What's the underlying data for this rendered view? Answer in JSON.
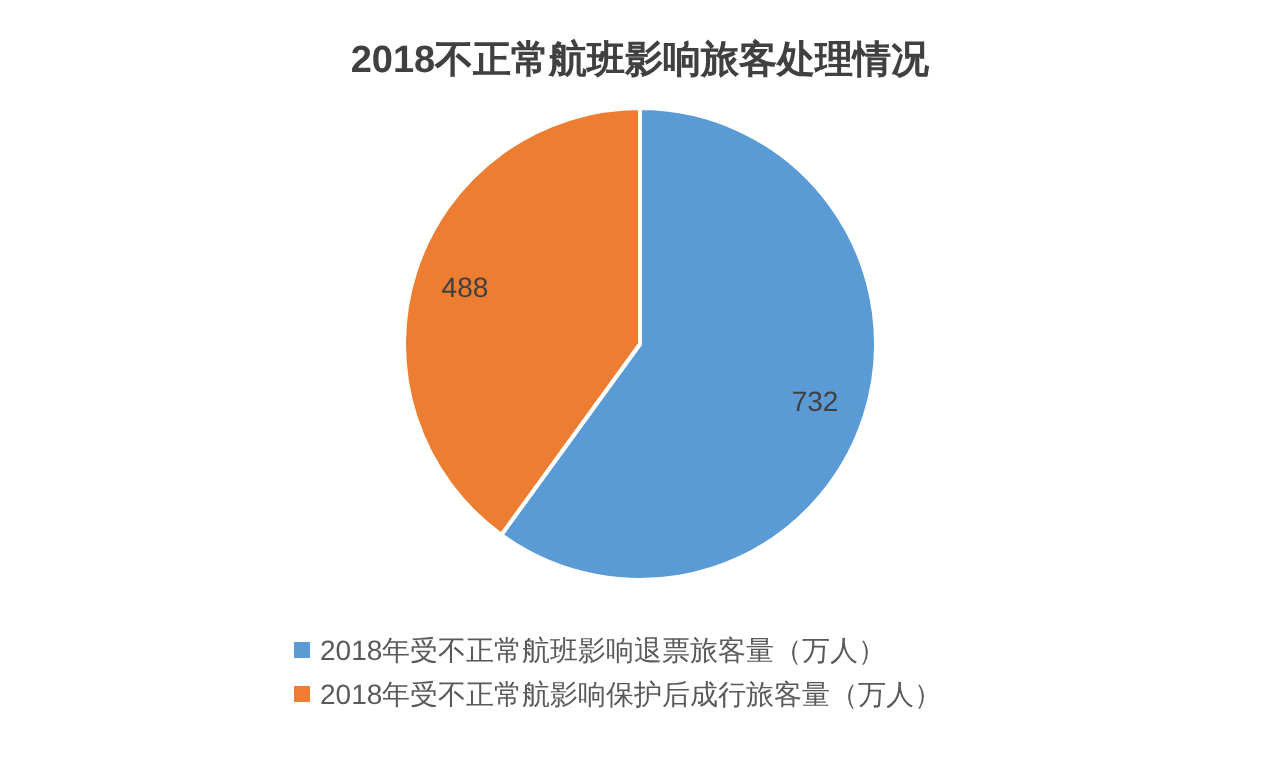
{
  "chart_data": {
    "type": "pie",
    "title": "2018不正常航班影响旅客处理情况",
    "categories": [
      "2018年受不正常航班影响退票旅客量（万人）",
      "2018年受不正常航影响保护后成行旅客量（万人）"
    ],
    "values": [
      732,
      488
    ],
    "colors": [
      "#5b9bd5",
      "#ed7d31"
    ],
    "data_labels": true,
    "legend": "bottom"
  }
}
